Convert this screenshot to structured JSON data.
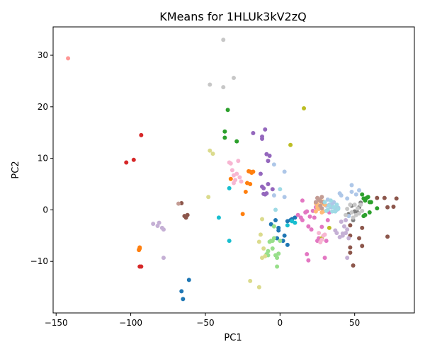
{
  "chart_data": {
    "type": "scatter",
    "title": "KMeans for 1HLUk3kV2zQ",
    "xlabel": "PC1",
    "ylabel": "PC2",
    "xlim": [
      -152,
      90
    ],
    "ylim": [
      -20,
      35.5
    ],
    "xticks": [
      -150,
      -100,
      -50,
      0,
      50
    ],
    "yticks": [
      -10,
      0,
      10,
      20,
      30
    ],
    "grid": false,
    "legend": "none",
    "series": [
      {
        "color": "#1f77b4",
        "points": [
          [
            -66,
            -15.8
          ],
          [
            -65,
            -17.3
          ],
          [
            -61,
            -13.6
          ],
          [
            -6,
            -2.8
          ],
          [
            -3,
            -2.0
          ],
          [
            -2,
            -5.5
          ],
          [
            -1,
            -3.5
          ],
          [
            -1,
            -4.0
          ],
          [
            2,
            -6.0
          ],
          [
            3,
            -5.0
          ],
          [
            5,
            -2.2
          ],
          [
            5,
            -6.8
          ],
          [
            7,
            -2.0
          ],
          [
            8,
            -1.8
          ],
          [
            10,
            -1.5
          ]
        ]
      },
      {
        "color": "#ff7f0e",
        "points": [
          [
            -94.5,
            -7.7
          ],
          [
            -94,
            -7.3
          ],
          [
            -94,
            -7.5
          ],
          [
            -94.5,
            -7.8
          ],
          [
            -33,
            6.0
          ],
          [
            -25,
            -0.8
          ],
          [
            -23,
            3.5
          ],
          [
            -22,
            5.2
          ],
          [
            -21,
            7.5
          ],
          [
            -20,
            7.4
          ],
          [
            -20,
            5.0
          ],
          [
            -19,
            7.2
          ],
          [
            -18,
            7.4
          ]
        ]
      },
      {
        "color": "#2ca02c",
        "points": [
          [
            -37,
            14.0
          ],
          [
            -37,
            15.2
          ],
          [
            -35,
            19.4
          ],
          [
            -29,
            13.3
          ],
          [
            55,
            3.0
          ],
          [
            56,
            2.2
          ],
          [
            57,
            1.8
          ],
          [
            56,
            -1.2
          ],
          [
            58,
            2.3
          ],
          [
            59,
            2.5
          ],
          [
            60,
            1.5
          ],
          [
            61,
            1.5
          ],
          [
            60,
            -0.5
          ],
          [
            57,
            -1.0
          ],
          [
            65,
            0.3
          ]
        ]
      },
      {
        "color": "#d62728",
        "points": [
          [
            -93,
            14.5
          ],
          [
            -98,
            9.7
          ],
          [
            -103,
            9.2
          ],
          [
            -93,
            -11
          ],
          [
            -94,
            -11
          ]
        ]
      },
      {
        "color": "#9467bd",
        "points": [
          [
            -18,
            14.9
          ],
          [
            -12,
            14.2
          ],
          [
            -12,
            4.5
          ],
          [
            -11,
            4.2
          ],
          [
            -10,
            15.6
          ],
          [
            -9,
            10.8
          ],
          [
            -8,
            5.0
          ],
          [
            -10,
            3.0
          ],
          [
            -9,
            3.2
          ],
          [
            -12,
            13.8
          ],
          [
            -13,
            7.0
          ],
          [
            -7,
            10.5
          ],
          [
            -5,
            4.0
          ],
          [
            -8,
            9.5
          ],
          [
            -11,
            3.1
          ]
        ]
      },
      {
        "color": "#8c564b",
        "points": [
          [
            -66,
            1.3
          ],
          [
            -64,
            -1.2
          ],
          [
            -63,
            -1.5
          ],
          [
            -62,
            -1.0
          ],
          [
            65,
            2.3
          ],
          [
            72,
            0.5
          ],
          [
            72,
            -5.2
          ],
          [
            76,
            0.6
          ],
          [
            78,
            2.2
          ],
          [
            70,
            2.3
          ],
          [
            47,
            -5.0
          ],
          [
            47,
            -8.3
          ],
          [
            49,
            -10.8
          ],
          [
            47,
            -7.3
          ],
          [
            55,
            -7.0
          ],
          [
            55,
            -3.5
          ],
          [
            53,
            -5.5
          ],
          [
            47,
            -3.0
          ]
        ]
      },
      {
        "color": "#e377c2",
        "points": [
          [
            12,
            -1.0
          ],
          [
            14,
            -1.5
          ],
          [
            15,
            1.8
          ],
          [
            15,
            -2.0
          ],
          [
            17,
            -0.5
          ],
          [
            18,
            -8.6
          ],
          [
            19,
            -9.8
          ],
          [
            19,
            -3.2
          ],
          [
            20,
            -1.3
          ],
          [
            21,
            -3.8
          ],
          [
            22,
            -0.2
          ],
          [
            25,
            -6.0
          ],
          [
            24,
            0.5
          ],
          [
            26,
            -5.5
          ],
          [
            28,
            -3.3
          ],
          [
            30,
            -9.3
          ],
          [
            31,
            -6.0
          ],
          [
            32,
            -2.0
          ],
          [
            33,
            -0.5
          ],
          [
            18,
            -0.3
          ],
          [
            23,
            -1.5
          ]
        ]
      },
      {
        "color": "#7f7f7f",
        "points": [
          [
            46,
            -0.8
          ],
          [
            48,
            0.8
          ],
          [
            49,
            -2.0
          ],
          [
            50,
            -0.3
          ],
          [
            52,
            -0.5
          ],
          [
            53,
            0.5
          ],
          [
            54,
            1.4
          ]
        ]
      },
      {
        "color": "#bcbd22",
        "points": [
          [
            7,
            12.6
          ],
          [
            16,
            19.7
          ],
          [
            28,
            -5.5
          ],
          [
            33,
            -3.5
          ]
        ]
      },
      {
        "color": "#17becf",
        "points": [
          [
            -34,
            4.2
          ],
          [
            -34,
            -6.0
          ],
          [
            -41,
            -1.5
          ],
          [
            5,
            -3.0
          ],
          [
            8,
            -2.2
          ],
          [
            10,
            -2.5
          ]
        ]
      },
      {
        "color": "#aec7e8",
        "points": [
          [
            -4,
            8.8
          ],
          [
            -4,
            2.8
          ],
          [
            3,
            7.4
          ],
          [
            3,
            2.5
          ],
          [
            31,
            0.8
          ],
          [
            32,
            2.0
          ],
          [
            33,
            1.0
          ],
          [
            34,
            0.5
          ],
          [
            35,
            1.2
          ],
          [
            36,
            1.5
          ],
          [
            40,
            3.2
          ],
          [
            41,
            2.8
          ],
          [
            45,
            2.2
          ],
          [
            48,
            4.8
          ],
          [
            48,
            3.5
          ],
          [
            51,
            3.0
          ],
          [
            53,
            3.8
          ],
          [
            46,
            -1.2
          ],
          [
            37,
            0.3
          ],
          [
            38,
            0.0
          ],
          [
            39,
            0.4
          ]
        ]
      },
      {
        "color": "#ffbb78",
        "points": [
          [
            24,
            1.3
          ],
          [
            25,
            1.0
          ],
          [
            26,
            1.8
          ],
          [
            27,
            2.0
          ],
          [
            28,
            1.2
          ],
          [
            29,
            1.6
          ],
          [
            30,
            1.0
          ],
          [
            25,
            0.5
          ],
          [
            24,
            -0.3
          ],
          [
            28,
            -0.5
          ],
          [
            26,
            0.2
          ],
          [
            29,
            -0.3
          ]
        ]
      },
      {
        "color": "#98df8a",
        "points": [
          [
            -9,
            -8.6
          ],
          [
            -8,
            -8.0
          ],
          [
            -8,
            -8.8
          ],
          [
            -6,
            -6.0
          ],
          [
            -7,
            -6.2
          ],
          [
            -5,
            -6.0
          ],
          [
            -4,
            -3.2
          ],
          [
            -4,
            -5.5
          ],
          [
            -3,
            -8.8
          ],
          [
            -2,
            -9.3
          ],
          [
            -2,
            -11.0
          ],
          [
            -1,
            -8.5
          ],
          [
            0,
            -6.0
          ],
          [
            -5,
            -7.5
          ]
        ]
      },
      {
        "color": "#ff9896",
        "points": [
          [
            -142,
            29.4
          ]
        ]
      },
      {
        "color": "#c5b0d5",
        "points": [
          [
            -85,
            -2.7
          ],
          [
            -82,
            -3.1
          ],
          [
            -81,
            -2.5
          ],
          [
            -79,
            -3.5
          ],
          [
            -78,
            -3.8
          ],
          [
            -78,
            -9.3
          ],
          [
            37,
            -4.0
          ],
          [
            38,
            -4.5
          ],
          [
            40,
            -5.3
          ],
          [
            42,
            -5.0
          ],
          [
            44,
            -4.5
          ],
          [
            45,
            -3.8
          ],
          [
            41,
            -2.3
          ],
          [
            44,
            -2.0
          ],
          [
            46,
            -5.5
          ],
          [
            45,
            -9.3
          ],
          [
            43,
            -3.2
          ],
          [
            42,
            -4.6
          ]
        ]
      },
      {
        "color": "#c49c94",
        "points": [
          [
            -68,
            1.2
          ],
          [
            24,
            1.5
          ],
          [
            25,
            2.3
          ],
          [
            26,
            2.0
          ],
          [
            27,
            1.7
          ],
          [
            28,
            2.5
          ],
          [
            29,
            1.5
          ],
          [
            27,
            0.8
          ],
          [
            28,
            0.3
          ]
        ]
      },
      {
        "color": "#f7b6d2",
        "points": [
          [
            -34,
            9.2
          ],
          [
            -32,
            7.7
          ],
          [
            -31,
            6.7
          ],
          [
            -30,
            5.8
          ],
          [
            -29,
            7.0
          ],
          [
            -28,
            9.5
          ],
          [
            -27,
            6.3
          ],
          [
            -26,
            5.5
          ],
          [
            -31,
            5.2
          ],
          [
            -33,
            9.0
          ],
          [
            27,
            -6.3
          ],
          [
            28,
            -5.8
          ],
          [
            29,
            -5.0
          ],
          [
            26,
            -4.5
          ],
          [
            30,
            -4.8
          ]
        ]
      },
      {
        "color": "#c7c7c7",
        "points": [
          [
            -38,
            33.0
          ],
          [
            -31,
            25.6
          ],
          [
            -38,
            23.8
          ],
          [
            -47,
            24.3
          ],
          [
            44,
            -1.0
          ],
          [
            45,
            0.2
          ],
          [
            47,
            1.0
          ],
          [
            48,
            -0.5
          ],
          [
            49,
            -1.5
          ],
          [
            50,
            1.0
          ],
          [
            51,
            -1.0
          ],
          [
            52,
            0.3
          ],
          [
            53,
            -0.7
          ],
          [
            54,
            1.0
          ],
          [
            55,
            -0.2
          ]
        ]
      },
      {
        "color": "#dbdb8d",
        "points": [
          [
            -47,
            11.5
          ],
          [
            -45,
            10.9
          ],
          [
            -48,
            2.5
          ],
          [
            -20,
            -13.8
          ],
          [
            -14,
            -15.0
          ],
          [
            -12,
            -1.8
          ],
          [
            -13,
            -4.8
          ],
          [
            -14,
            -6.2
          ],
          [
            -12,
            -9.3
          ],
          [
            -10,
            -9.0
          ],
          [
            -11,
            -7.5
          ]
        ]
      },
      {
        "color": "#9edae5",
        "points": [
          [
            -3,
            0.0
          ],
          [
            0,
            4.0
          ],
          [
            30,
            1.5
          ],
          [
            31,
            -0.2
          ],
          [
            32,
            0.0
          ],
          [
            33,
            0.8
          ],
          [
            34,
            1.8
          ],
          [
            35,
            -0.3
          ],
          [
            36,
            0.5
          ],
          [
            37,
            -0.3
          ],
          [
            38,
            1.0
          ],
          [
            39,
            0.2
          ]
        ]
      }
    ]
  }
}
